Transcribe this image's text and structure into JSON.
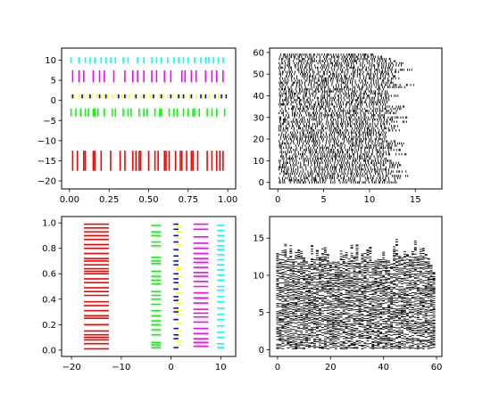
{
  "chart_data": [
    {
      "type": "eventplot",
      "orientation": "horizontal",
      "xlim": [
        -0.05,
        1.05
      ],
      "ylim": [
        -22,
        13
      ],
      "xticks": [
        0.0,
        0.25,
        0.5,
        0.75,
        1.0
      ],
      "xtick_labels": [
        "0.00",
        "0.25",
        "0.50",
        "0.75",
        "1.00"
      ],
      "yticks": [
        10,
        5,
        0,
        -5,
        -10,
        -15,
        -20
      ],
      "ytick_labels": [
        "10",
        "5",
        "0",
        "−5",
        "−10",
        "−15",
        "−20"
      ],
      "series": [
        {
          "color": "#ff0000",
          "offset": -15,
          "linelength": 5,
          "linewidth": 1.6,
          "positions": [
            0.02,
            0.05,
            0.09,
            0.1,
            0.15,
            0.16,
            0.2,
            0.26,
            0.32,
            0.35,
            0.4,
            0.42,
            0.44,
            0.45,
            0.5,
            0.54,
            0.56,
            0.6,
            0.61,
            0.63,
            0.67,
            0.7,
            0.71,
            0.74,
            0.77,
            0.78,
            0.81,
            0.87,
            0.9,
            0.93,
            0.95,
            0.97
          ]
        },
        {
          "color": "#00ff00",
          "offset": -3,
          "linelength": 2,
          "linewidth": 1.6,
          "positions": [
            0.01,
            0.04,
            0.07,
            0.1,
            0.12,
            0.15,
            0.16,
            0.18,
            0.22,
            0.27,
            0.29,
            0.34,
            0.37,
            0.39,
            0.44,
            0.47,
            0.49,
            0.54,
            0.57,
            0.58,
            0.63,
            0.66,
            0.68,
            0.72,
            0.75,
            0.78,
            0.79,
            0.82,
            0.87,
            0.9,
            0.93,
            0.98
          ]
        },
        {
          "color": "#ffff00",
          "offset": 1,
          "linelength": 1,
          "linewidth": 1.6,
          "positions": [
            0.01,
            0.03,
            0.06,
            0.09,
            0.12,
            0.14,
            0.17,
            0.2,
            0.22,
            0.24,
            0.27,
            0.3,
            0.33,
            0.36,
            0.38,
            0.41,
            0.45,
            0.48,
            0.51,
            0.54,
            0.57,
            0.59,
            0.62,
            0.65,
            0.68,
            0.7,
            0.73,
            0.76,
            0.8,
            0.84,
            0.88,
            0.91,
            0.94,
            0.97
          ]
        },
        {
          "color": "#0000ff",
          "offset": 1,
          "linelength": 1,
          "linewidth": 1.6,
          "positions": [
            0.02,
            0.08,
            0.13,
            0.19,
            0.23,
            0.31,
            0.35,
            0.42,
            0.47,
            0.53,
            0.58,
            0.64,
            0.69,
            0.72,
            0.77,
            0.83,
            0.86,
            0.92,
            0.96,
            0.99
          ]
        },
        {
          "color": "#ff00ff",
          "offset": 6,
          "linelength": 3,
          "linewidth": 1.6,
          "positions": [
            0.02,
            0.06,
            0.09,
            0.15,
            0.19,
            0.22,
            0.28,
            0.35,
            0.4,
            0.43,
            0.47,
            0.52,
            0.55,
            0.6,
            0.64,
            0.71,
            0.73,
            0.77,
            0.8,
            0.86,
            0.9,
            0.93,
            0.97
          ]
        },
        {
          "color": "#00ffff",
          "offset": 10,
          "linelength": 1.5,
          "linewidth": 1.6,
          "positions": [
            0.01,
            0.06,
            0.1,
            0.13,
            0.16,
            0.2,
            0.23,
            0.26,
            0.29,
            0.34,
            0.37,
            0.43,
            0.47,
            0.52,
            0.55,
            0.58,
            0.62,
            0.66,
            0.69,
            0.72,
            0.75,
            0.79,
            0.83,
            0.86,
            0.88,
            0.91,
            0.94,
            0.97
          ]
        }
      ]
    },
    {
      "type": "eventplot",
      "orientation": "horizontal",
      "xlim": [
        -0.9,
        17.9
      ],
      "ylim": [
        -3,
        62
      ],
      "xticks": [
        0,
        5,
        10,
        15
      ],
      "xtick_labels": [
        "0",
        "5",
        "10",
        "15"
      ],
      "yticks": [
        0,
        10,
        20,
        30,
        40,
        50,
        60
      ],
      "ytick_labels": [
        "0",
        "10",
        "20",
        "30",
        "40",
        "50",
        "60"
      ],
      "series": [
        {
          "color": "#000000",
          "linelength": 1,
          "linewidth": 0.9,
          "generated": "gamma-events",
          "rows": 60,
          "events_per_row": 50,
          "gamma_shape": 4,
          "gamma_scale": 0.9,
          "seed": 19680801
        }
      ]
    },
    {
      "type": "eventplot",
      "orientation": "vertical",
      "xlim": [
        -22,
        13
      ],
      "ylim": [
        -0.05,
        1.05
      ],
      "xticks": [
        -20,
        -10,
        0,
        10
      ],
      "xtick_labels": [
        "−20",
        "−10",
        "0",
        "10"
      ],
      "yticks": [
        0.0,
        0.2,
        0.4,
        0.6,
        0.8,
        1.0
      ],
      "ytick_labels": [
        "0.0",
        "0.2",
        "0.4",
        "0.6",
        "0.8",
        "1.0"
      ],
      "series": [
        {
          "color": "#ff0000",
          "offset": -15,
          "linelength": 5,
          "linewidth": 1.6,
          "positions": [
            0.01,
            0.05,
            0.08,
            0.1,
            0.12,
            0.15,
            0.2,
            0.25,
            0.27,
            0.31,
            0.35,
            0.38,
            0.43,
            0.46,
            0.49,
            0.53,
            0.56,
            0.6,
            0.62,
            0.64,
            0.67,
            0.7,
            0.72,
            0.76,
            0.8,
            0.83,
            0.87,
            0.9,
            0.93,
            0.96,
            0.99
          ]
        },
        {
          "color": "#00ff00",
          "offset": -3,
          "linelength": 2,
          "linewidth": 1.6,
          "positions": [
            0.02,
            0.04,
            0.06,
            0.12,
            0.16,
            0.2,
            0.23,
            0.27,
            0.31,
            0.36,
            0.4,
            0.43,
            0.46,
            0.52,
            0.55,
            0.58,
            0.62,
            0.68,
            0.7,
            0.73,
            0.82,
            0.85,
            0.9,
            0.93,
            0.98
          ]
        },
        {
          "color": "#ffff00",
          "offset": 1.5,
          "linelength": 1,
          "linewidth": 1.6,
          "positions": [
            0.04,
            0.07,
            0.11,
            0.15,
            0.21,
            0.28,
            0.31,
            0.37,
            0.4,
            0.45,
            0.51,
            0.58,
            0.63,
            0.65,
            0.71,
            0.78,
            0.83,
            0.88,
            0.93,
            0.97
          ]
        },
        {
          "color": "#0000ff",
          "offset": 1,
          "linelength": 1,
          "linewidth": 1.6,
          "positions": [
            0.02,
            0.09,
            0.12,
            0.17,
            0.24,
            0.3,
            0.33,
            0.39,
            0.42,
            0.48,
            0.53,
            0.56,
            0.6,
            0.67,
            0.7,
            0.74,
            0.79,
            0.85,
            0.9,
            0.95,
            0.99
          ]
        },
        {
          "color": "#ff00ff",
          "offset": 6,
          "linelength": 3,
          "linewidth": 1.6,
          "positions": [
            0.03,
            0.06,
            0.09,
            0.13,
            0.17,
            0.22,
            0.26,
            0.29,
            0.32,
            0.37,
            0.41,
            0.45,
            0.5,
            0.54,
            0.58,
            0.61,
            0.65,
            0.69,
            0.72,
            0.76,
            0.8,
            0.84,
            0.89,
            0.95,
            0.99
          ]
        },
        {
          "color": "#00ffff",
          "offset": 10,
          "linelength": 1.5,
          "linewidth": 1.6,
          "positions": [
            0.02,
            0.05,
            0.1,
            0.14,
            0.19,
            0.24,
            0.28,
            0.33,
            0.38,
            0.42,
            0.47,
            0.5,
            0.55,
            0.59,
            0.63,
            0.67,
            0.71,
            0.75,
            0.79,
            0.82,
            0.86,
            0.9,
            0.94,
            0.98
          ]
        }
      ]
    },
    {
      "type": "eventplot",
      "orientation": "vertical",
      "xlim": [
        -3,
        62
      ],
      "ylim": [
        -0.9,
        17.9
      ],
      "xticks": [
        0,
        20,
        40,
        60
      ],
      "xtick_labels": [
        "0",
        "20",
        "40",
        "60"
      ],
      "yticks": [
        0,
        5,
        10,
        15
      ],
      "ytick_labels": [
        "0",
        "5",
        "10",
        "15"
      ],
      "series": [
        {
          "color": "#000000",
          "linelength": 1,
          "linewidth": 0.9,
          "generated": "gamma-events",
          "rows": 60,
          "events_per_row": 50,
          "gamma_shape": 4,
          "gamma_scale": 0.9,
          "seed": 19680801
        }
      ]
    }
  ]
}
